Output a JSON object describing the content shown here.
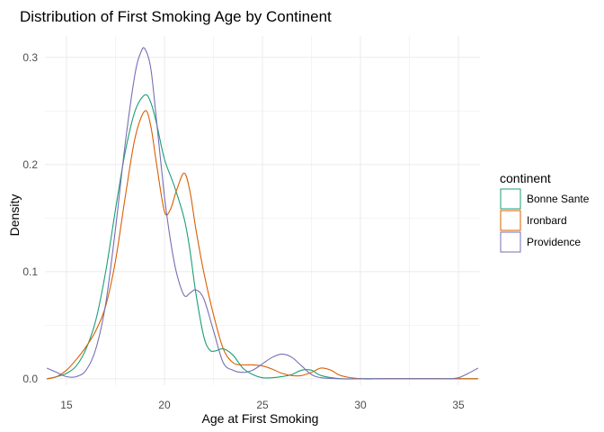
{
  "chart_data": {
    "type": "line",
    "title": "Distribution of First Smoking Age by Continent",
    "xlabel": "Age at First Smoking",
    "ylabel": "Density",
    "xlim": [
      13.9,
      36.1
    ],
    "ylim": [
      -0.006,
      0.32
    ],
    "x_ticks": [
      15,
      20,
      25,
      30,
      35
    ],
    "x_minor_ticks": [
      17.5,
      22.5,
      27.5,
      32.5
    ],
    "y_ticks": [
      0.0,
      0.1,
      0.2,
      0.3
    ],
    "y_tick_labels": [
      "0.0",
      "0.1",
      "0.2",
      "0.3"
    ],
    "y_minor_ticks": [
      0.05,
      0.15,
      0.25
    ],
    "grid": true,
    "legend": {
      "title": "continent",
      "placement": "right"
    },
    "series": [
      {
        "name": "Bonne Sante",
        "color": "#1b9e77",
        "x": [
          14.0,
          14.5,
          15.0,
          15.5,
          16.0,
          16.5,
          17.0,
          17.5,
          18.0,
          18.5,
          19.0,
          19.3,
          19.6,
          20.0,
          20.5,
          21.0,
          21.3,
          21.6,
          22.0,
          22.3,
          22.6,
          23.0,
          23.5,
          24.0,
          24.5,
          25.0,
          25.5,
          26.0,
          26.5,
          27.0,
          27.5,
          28.0,
          29.0,
          30.0,
          31.0,
          32.0,
          33.0,
          34.0,
          35.0,
          36.0
        ],
        "y": [
          0.0,
          0.002,
          0.005,
          0.012,
          0.028,
          0.055,
          0.1,
          0.158,
          0.212,
          0.25,
          0.265,
          0.258,
          0.238,
          0.205,
          0.18,
          0.15,
          0.12,
          0.08,
          0.04,
          0.027,
          0.026,
          0.028,
          0.022,
          0.01,
          0.004,
          0.001,
          0.001,
          0.002,
          0.004,
          0.008,
          0.008,
          0.003,
          0.0,
          0.0,
          0.0,
          0.0,
          0.0,
          0.0,
          0.0,
          0.0
        ]
      },
      {
        "name": "Ironbard",
        "color": "#d95f02",
        "x": [
          14.0,
          14.5,
          15.0,
          15.5,
          16.0,
          16.5,
          17.0,
          17.5,
          18.0,
          18.5,
          19.0,
          19.3,
          19.6,
          20.0,
          20.3,
          20.6,
          21.0,
          21.3,
          21.6,
          22.0,
          22.5,
          23.0,
          23.5,
          24.0,
          24.5,
          25.0,
          25.5,
          26.0,
          26.5,
          27.0,
          27.5,
          28.0,
          28.5,
          29.0,
          30.0,
          31.0,
          32.0,
          33.0,
          34.0,
          35.0,
          36.0
        ],
        "y": [
          0.0,
          0.002,
          0.008,
          0.018,
          0.03,
          0.045,
          0.068,
          0.11,
          0.17,
          0.225,
          0.25,
          0.236,
          0.2,
          0.156,
          0.158,
          0.175,
          0.192,
          0.175,
          0.14,
          0.1,
          0.06,
          0.028,
          0.015,
          0.013,
          0.013,
          0.012,
          0.009,
          0.005,
          0.003,
          0.003,
          0.006,
          0.01,
          0.008,
          0.003,
          0.0,
          0.0,
          0.0,
          0.0,
          0.0,
          0.0,
          0.0
        ]
      },
      {
        "name": "Providence",
        "color": "#7570b3",
        "x": [
          14.0,
          14.5,
          15.0,
          15.5,
          16.0,
          16.5,
          17.0,
          17.5,
          18.0,
          18.5,
          18.8,
          19.0,
          19.3,
          19.6,
          20.0,
          20.3,
          20.6,
          21.0,
          21.3,
          21.6,
          22.0,
          22.5,
          23.0,
          23.5,
          24.0,
          24.5,
          25.0,
          25.5,
          26.0,
          26.5,
          27.0,
          27.5,
          28.0,
          29.0,
          30.0,
          31.0,
          32.0,
          33.0,
          34.0,
          34.5,
          35.0,
          35.5,
          36.0
        ],
        "y": [
          0.01,
          0.006,
          0.002,
          0.002,
          0.008,
          0.028,
          0.07,
          0.14,
          0.22,
          0.285,
          0.305,
          0.308,
          0.29,
          0.24,
          0.17,
          0.13,
          0.1,
          0.078,
          0.08,
          0.083,
          0.075,
          0.045,
          0.015,
          0.008,
          0.006,
          0.008,
          0.014,
          0.02,
          0.023,
          0.02,
          0.012,
          0.004,
          0.001,
          0.0,
          0.0,
          0.0,
          0.0,
          0.0,
          0.0,
          0.0,
          0.001,
          0.005,
          0.01
        ]
      }
    ]
  }
}
